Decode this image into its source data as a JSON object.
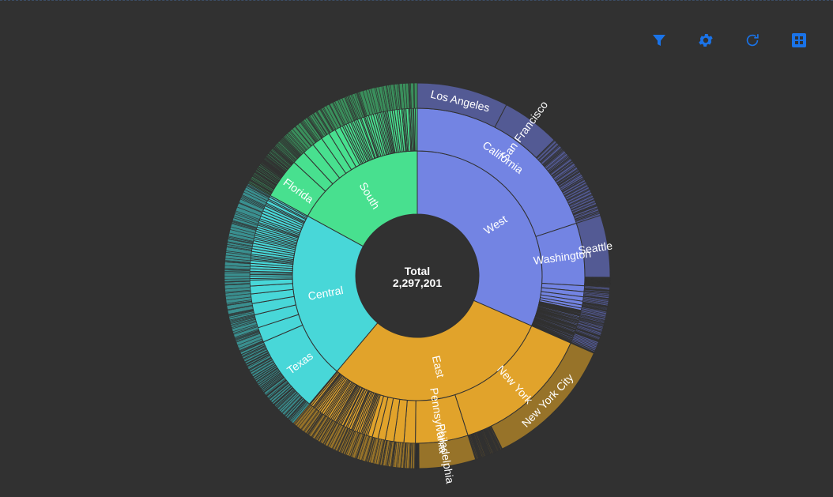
{
  "toolbar": {
    "icons": [
      "filter-icon",
      "gear-icon",
      "refresh-icon",
      "grid-icon"
    ],
    "color": "#1a73e8"
  },
  "chart_data": {
    "type": "sunburst",
    "center_label": {
      "title": "Total",
      "value": "2,297,201"
    },
    "total": 2297201,
    "regions": [
      {
        "name": "West",
        "value": 725458,
        "color": "#7384e3",
        "outer_color": "#535a94",
        "states": [
          {
            "name": "California",
            "value": 457688,
            "cities": [
              {
                "name": "Los Angeles",
                "value": 175851
              },
              {
                "name": "San Francisco",
                "value": 112669
              }
            ]
          },
          {
            "name": "Washington",
            "value": 138641,
            "cities": [
              {
                "name": "Seattle",
                "value": 119541
              }
            ]
          }
        ]
      },
      {
        "name": "East",
        "value": 678781,
        "color": "#e1a32b",
        "outer_color": "#977329",
        "states": [
          {
            "name": "New York",
            "value": 310876,
            "cities": [
              {
                "name": "New York City",
                "value": 256368
              }
            ]
          },
          {
            "name": "Pennsylvania",
            "value": 116512,
            "cities": [
              {
                "name": "Philadelphia",
                "value": 109077
              }
            ]
          }
        ]
      },
      {
        "name": "Central",
        "value": 501240,
        "color": "#48d7d8",
        "outer_color": "#3a8f8f",
        "states": [
          {
            "name": "Texas",
            "value": 170188,
            "cities": []
          }
        ]
      },
      {
        "name": "South",
        "value": 391722,
        "color": "#48e08f",
        "outer_color": "#3a8f5c",
        "states": [
          {
            "name": "Florida",
            "value": 89474,
            "cities": []
          }
        ]
      }
    ]
  }
}
